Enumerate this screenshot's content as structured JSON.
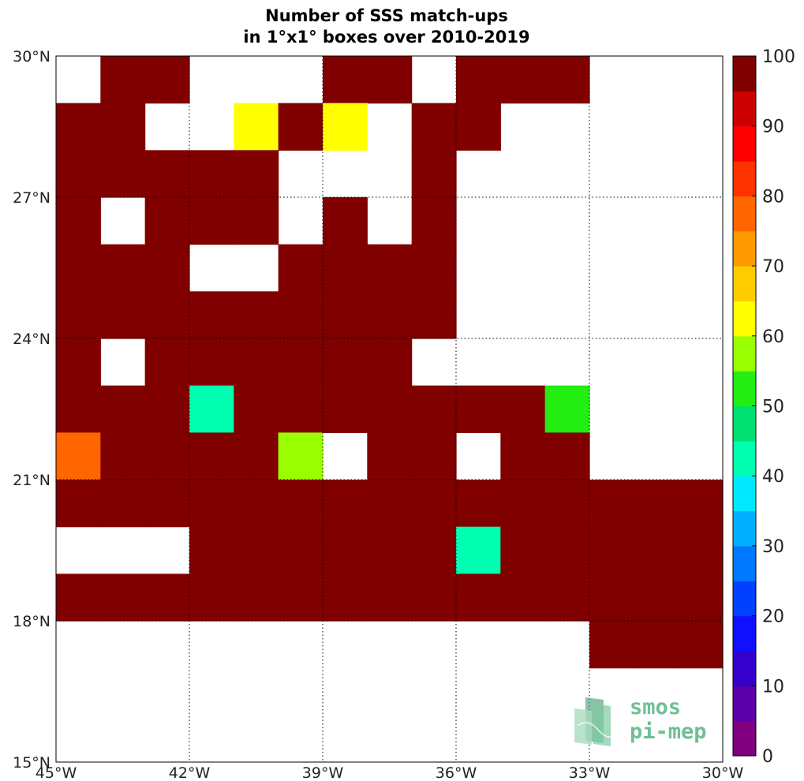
{
  "chart_data": {
    "type": "heatmap",
    "title": [
      "Number of SSS match-ups",
      "in 1°x1° boxes over 2010-2019"
    ],
    "xlim": [
      -45,
      -30
    ],
    "ylim": [
      15,
      30
    ],
    "x_ticks": [
      -45,
      -42,
      -39,
      -36,
      -33,
      -30
    ],
    "x_tick_labels": [
      "45°W",
      "42°W",
      "39°W",
      "36°W",
      "33°W",
      "30°W"
    ],
    "y_ticks": [
      15,
      18,
      21,
      24,
      27,
      30
    ],
    "y_tick_labels": [
      "15°N",
      "18°N",
      "21°N",
      "24°N",
      "27°N",
      "30°N"
    ],
    "grid": true,
    "cell_size_deg": 1,
    "cells_note": "lon,lat = south-west corner of each 1°x1° box; count = number of match-ups (100 = 100 or more)",
    "cells": [
      {
        "lon": -44,
        "lat": 29,
        "count": 100
      },
      {
        "lon": -43,
        "lat": 29,
        "count": 100
      },
      {
        "lon": -39,
        "lat": 29,
        "count": 100
      },
      {
        "lon": -38,
        "lat": 29,
        "count": 100
      },
      {
        "lon": -36,
        "lat": 29,
        "count": 100
      },
      {
        "lon": -35,
        "lat": 29,
        "count": 100
      },
      {
        "lon": -34,
        "lat": 29,
        "count": 100
      },
      {
        "lon": -45,
        "lat": 28,
        "count": 100
      },
      {
        "lon": -44,
        "lat": 28,
        "count": 100
      },
      {
        "lon": -41,
        "lat": 28,
        "count": 63
      },
      {
        "lon": -40,
        "lat": 28,
        "count": 100
      },
      {
        "lon": -39,
        "lat": 28,
        "count": 63
      },
      {
        "lon": -37,
        "lat": 28,
        "count": 100
      },
      {
        "lon": -36,
        "lat": 28,
        "count": 100
      },
      {
        "lon": -45,
        "lat": 27,
        "count": 100
      },
      {
        "lon": -44,
        "lat": 27,
        "count": 100
      },
      {
        "lon": -43,
        "lat": 27,
        "count": 100
      },
      {
        "lon": -42,
        "lat": 27,
        "count": 100
      },
      {
        "lon": -41,
        "lat": 27,
        "count": 100
      },
      {
        "lon": -37,
        "lat": 27,
        "count": 100
      },
      {
        "lon": -45,
        "lat": 26,
        "count": 100
      },
      {
        "lon": -43,
        "lat": 26,
        "count": 100
      },
      {
        "lon": -42,
        "lat": 26,
        "count": 100
      },
      {
        "lon": -41,
        "lat": 26,
        "count": 100
      },
      {
        "lon": -39,
        "lat": 26,
        "count": 100
      },
      {
        "lon": -37,
        "lat": 26,
        "count": 100
      },
      {
        "lon": -45,
        "lat": 25,
        "count": 100
      },
      {
        "lon": -44,
        "lat": 25,
        "count": 100
      },
      {
        "lon": -43,
        "lat": 25,
        "count": 100
      },
      {
        "lon": -40,
        "lat": 25,
        "count": 100
      },
      {
        "lon": -39,
        "lat": 25,
        "count": 100
      },
      {
        "lon": -38,
        "lat": 25,
        "count": 100
      },
      {
        "lon": -37,
        "lat": 25,
        "count": 100
      },
      {
        "lon": -45,
        "lat": 24,
        "count": 100
      },
      {
        "lon": -44,
        "lat": 24,
        "count": 100
      },
      {
        "lon": -43,
        "lat": 24,
        "count": 100
      },
      {
        "lon": -42,
        "lat": 24,
        "count": 100
      },
      {
        "lon": -41,
        "lat": 24,
        "count": 100
      },
      {
        "lon": -40,
        "lat": 24,
        "count": 100
      },
      {
        "lon": -39,
        "lat": 24,
        "count": 100
      },
      {
        "lon": -38,
        "lat": 24,
        "count": 100
      },
      {
        "lon": -37,
        "lat": 24,
        "count": 100
      },
      {
        "lon": -45,
        "lat": 23,
        "count": 100
      },
      {
        "lon": -43,
        "lat": 23,
        "count": 100
      },
      {
        "lon": -42,
        "lat": 23,
        "count": 100
      },
      {
        "lon": -41,
        "lat": 23,
        "count": 100
      },
      {
        "lon": -40,
        "lat": 23,
        "count": 100
      },
      {
        "lon": -39,
        "lat": 23,
        "count": 100
      },
      {
        "lon": -38,
        "lat": 23,
        "count": 100
      },
      {
        "lon": -45,
        "lat": 22,
        "count": 100
      },
      {
        "lon": -44,
        "lat": 22,
        "count": 100
      },
      {
        "lon": -43,
        "lat": 22,
        "count": 100
      },
      {
        "lon": -42,
        "lat": 22,
        "count": 43
      },
      {
        "lon": -41,
        "lat": 22,
        "count": 100
      },
      {
        "lon": -40,
        "lat": 22,
        "count": 100
      },
      {
        "lon": -39,
        "lat": 22,
        "count": 100
      },
      {
        "lon": -38,
        "lat": 22,
        "count": 100
      },
      {
        "lon": -37,
        "lat": 22,
        "count": 100
      },
      {
        "lon": -36,
        "lat": 22,
        "count": 100
      },
      {
        "lon": -35,
        "lat": 22,
        "count": 100
      },
      {
        "lon": -34,
        "lat": 22,
        "count": 53
      },
      {
        "lon": -45,
        "lat": 21,
        "count": 78
      },
      {
        "lon": -44,
        "lat": 21,
        "count": 100
      },
      {
        "lon": -43,
        "lat": 21,
        "count": 100
      },
      {
        "lon": -42,
        "lat": 21,
        "count": 100
      },
      {
        "lon": -41,
        "lat": 21,
        "count": 100
      },
      {
        "lon": -40,
        "lat": 21,
        "count": 58
      },
      {
        "lon": -38,
        "lat": 21,
        "count": 100
      },
      {
        "lon": -37,
        "lat": 21,
        "count": 100
      },
      {
        "lon": -35,
        "lat": 21,
        "count": 100
      },
      {
        "lon": -34,
        "lat": 21,
        "count": 100
      },
      {
        "lon": -45,
        "lat": 20,
        "count": 100
      },
      {
        "lon": -44,
        "lat": 20,
        "count": 100
      },
      {
        "lon": -43,
        "lat": 20,
        "count": 100
      },
      {
        "lon": -42,
        "lat": 20,
        "count": 100
      },
      {
        "lon": -41,
        "lat": 20,
        "count": 100
      },
      {
        "lon": -40,
        "lat": 20,
        "count": 100
      },
      {
        "lon": -39,
        "lat": 20,
        "count": 100
      },
      {
        "lon": -38,
        "lat": 20,
        "count": 100
      },
      {
        "lon": -37,
        "lat": 20,
        "count": 100
      },
      {
        "lon": -36,
        "lat": 20,
        "count": 100
      },
      {
        "lon": -35,
        "lat": 20,
        "count": 100
      },
      {
        "lon": -34,
        "lat": 20,
        "count": 100
      },
      {
        "lon": -33,
        "lat": 20,
        "count": 100
      },
      {
        "lon": -32,
        "lat": 20,
        "count": 100
      },
      {
        "lon": -31,
        "lat": 20,
        "count": 100
      },
      {
        "lon": -42,
        "lat": 19,
        "count": 100
      },
      {
        "lon": -41,
        "lat": 19,
        "count": 100
      },
      {
        "lon": -40,
        "lat": 19,
        "count": 100
      },
      {
        "lon": -39,
        "lat": 19,
        "count": 100
      },
      {
        "lon": -38,
        "lat": 19,
        "count": 100
      },
      {
        "lon": -37,
        "lat": 19,
        "count": 100
      },
      {
        "lon": -36,
        "lat": 19,
        "count": 43
      },
      {
        "lon": -35,
        "lat": 19,
        "count": 100
      },
      {
        "lon": -34,
        "lat": 19,
        "count": 100
      },
      {
        "lon": -33,
        "lat": 19,
        "count": 100
      },
      {
        "lon": -32,
        "lat": 19,
        "count": 100
      },
      {
        "lon": -31,
        "lat": 19,
        "count": 100
      },
      {
        "lon": -45,
        "lat": 18,
        "count": 100
      },
      {
        "lon": -44,
        "lat": 18,
        "count": 100
      },
      {
        "lon": -43,
        "lat": 18,
        "count": 100
      },
      {
        "lon": -42,
        "lat": 18,
        "count": 100
      },
      {
        "lon": -41,
        "lat": 18,
        "count": 100
      },
      {
        "lon": -40,
        "lat": 18,
        "count": 100
      },
      {
        "lon": -39,
        "lat": 18,
        "count": 100
      },
      {
        "lon": -38,
        "lat": 18,
        "count": 100
      },
      {
        "lon": -37,
        "lat": 18,
        "count": 100
      },
      {
        "lon": -36,
        "lat": 18,
        "count": 100
      },
      {
        "lon": -35,
        "lat": 18,
        "count": 100
      },
      {
        "lon": -34,
        "lat": 18,
        "count": 100
      },
      {
        "lon": -33,
        "lat": 18,
        "count": 100
      },
      {
        "lon": -32,
        "lat": 18,
        "count": 100
      },
      {
        "lon": -31,
        "lat": 18,
        "count": 100
      },
      {
        "lon": -33,
        "lat": 17,
        "count": 100
      },
      {
        "lon": -32,
        "lat": 17,
        "count": 100
      },
      {
        "lon": -31,
        "lat": 17,
        "count": 100
      }
    ],
    "colorbar": {
      "min": 0,
      "max": 100,
      "step": 5,
      "tick_values": [
        0,
        10,
        20,
        30,
        40,
        50,
        60,
        70,
        80,
        90,
        100
      ],
      "tick_labels": [
        "0",
        "10",
        "20",
        "30",
        "40",
        "50",
        "60",
        "70",
        "80",
        "90",
        "100"
      ],
      "colors": [
        "#800080",
        "#5a00a8",
        "#3300cc",
        "#1010ff",
        "#0040ff",
        "#0078ff",
        "#00b0ff",
        "#00e8ff",
        "#00ffb0",
        "#00e070",
        "#22ee11",
        "#99ff00",
        "#ffff00",
        "#ffcc00",
        "#ff9900",
        "#ff6600",
        "#ff3300",
        "#ff0000",
        "#cc0000",
        "#800000"
      ]
    }
  },
  "logo": {
    "line1": "smos",
    "line2": "pi-mep"
  }
}
